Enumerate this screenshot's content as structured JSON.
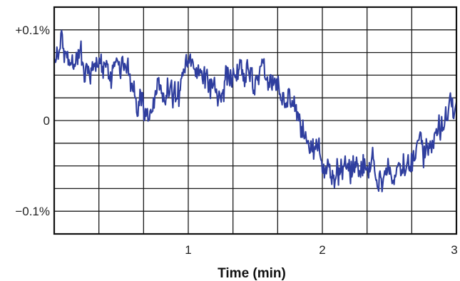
{
  "chart_data": {
    "type": "line",
    "title": "",
    "xlabel": "Time (min)",
    "ylabel": "",
    "xlim": [
      0,
      3
    ],
    "ylim": [
      -0.125,
      0.125
    ],
    "grid": true,
    "legend": "none",
    "colors": {
      "line": "#2f3e9e",
      "grid": "#1a1a1a",
      "axis": "#111111",
      "background": "#ffffff"
    },
    "x_ticks": [
      {
        "value": 1,
        "label": "1"
      },
      {
        "value": 2,
        "label": "2"
      },
      {
        "value": 3,
        "label": "3"
      }
    ],
    "y_ticks": [
      {
        "value": 0.1,
        "label": "+0.1%"
      },
      {
        "value": 0,
        "label": "0"
      },
      {
        "value": -0.1,
        "label": "−0.1%"
      }
    ],
    "series": [
      {
        "x": [
          0.0,
          0.05,
          0.1,
          0.15,
          0.2,
          0.25,
          0.3,
          0.35,
          0.4,
          0.45,
          0.5,
          0.55,
          0.6,
          0.65,
          0.7,
          0.75,
          0.8,
          0.85,
          0.9,
          0.95,
          1.0,
          1.05,
          1.1,
          1.15,
          1.2,
          1.25,
          1.3,
          1.35,
          1.4,
          1.45,
          1.5,
          1.55,
          1.6,
          1.65,
          1.7,
          1.75,
          1.8,
          1.85,
          1.9,
          1.95,
          2.0,
          2.05,
          2.1,
          2.15,
          2.2,
          2.25,
          2.3,
          2.35,
          2.4,
          2.45,
          2.5,
          2.55,
          2.6,
          2.65,
          2.7,
          2.75,
          2.8,
          2.85,
          2.9,
          2.95,
          3.0
        ],
        "values": [
          0.059,
          0.075,
          0.082,
          0.069,
          0.062,
          0.05,
          0.058,
          0.052,
          0.055,
          0.048,
          0.06,
          0.045,
          0.035,
          0.018,
          0.005,
          0.025,
          0.028,
          0.038,
          0.022,
          0.035,
          0.065,
          0.058,
          0.05,
          0.042,
          0.025,
          0.04,
          0.048,
          0.052,
          0.05,
          0.055,
          0.04,
          0.045,
          0.048,
          0.038,
          0.025,
          0.02,
          0.015,
          -0.008,
          -0.022,
          -0.03,
          -0.045,
          -0.055,
          -0.062,
          -0.058,
          -0.048,
          -0.052,
          -0.045,
          -0.05,
          -0.058,
          -0.065,
          -0.055,
          -0.052,
          -0.048,
          -0.045,
          -0.04,
          -0.032,
          -0.022,
          -0.015,
          -0.005,
          0.01,
          0.008
        ]
      }
    ]
  }
}
